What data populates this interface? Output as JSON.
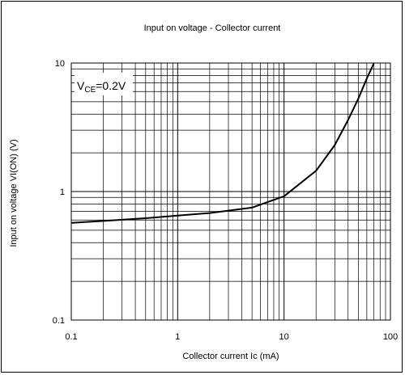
{
  "chart_data": {
    "type": "line",
    "title": "Input on voltage - Collector current",
    "xlabel": "Collector current Ic (mA)",
    "ylabel": "Input on voltage VI(ON) (V)",
    "xscale": "log",
    "yscale": "log",
    "xlim": [
      0.1,
      100
    ],
    "ylim": [
      0.1,
      10
    ],
    "x_ticks": [
      "0.1",
      "1",
      "10",
      "100"
    ],
    "y_ticks": [
      "0.1",
      "1",
      "10"
    ],
    "grid": true,
    "annotation": {
      "prefix": "V",
      "subscript": "CE",
      "suffix": "=0.2V"
    },
    "series": [
      {
        "color": "#000000",
        "x": [
          0.1,
          0.2,
          0.5,
          1,
          2,
          5,
          10,
          20,
          30,
          40,
          50,
          60,
          70
        ],
        "y": [
          0.57,
          0.59,
          0.62,
          0.65,
          0.68,
          0.75,
          0.92,
          1.45,
          2.3,
          3.6,
          5.3,
          7.6,
          10
        ]
      }
    ]
  }
}
